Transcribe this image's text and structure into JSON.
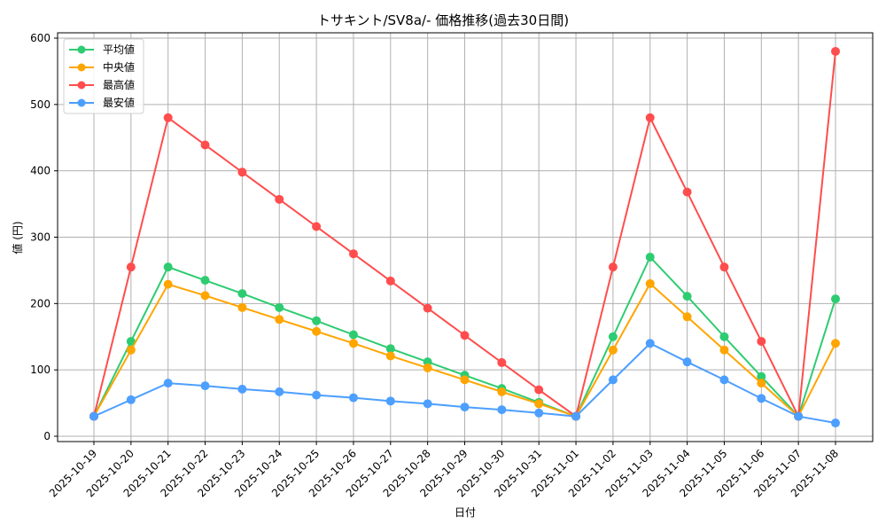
{
  "chart_data": {
    "type": "line",
    "title": "トサキント/SV8a/- 価格推移(過去30日間)",
    "xlabel": "日付",
    "ylabel": "値 (円)",
    "ylim": [
      0,
      600
    ],
    "yticks": [
      0,
      100,
      200,
      300,
      400,
      500,
      600
    ],
    "grid": true,
    "legend_position": "upper left",
    "categories": [
      "2025-10-19",
      "2025-10-20",
      "2025-10-21",
      "2025-10-22",
      "2025-10-23",
      "2025-10-24",
      "2025-10-25",
      "2025-10-26",
      "2025-10-27",
      "2025-10-28",
      "2025-10-29",
      "2025-10-30",
      "2025-10-31",
      "2025-11-01",
      "2025-11-02",
      "2025-11-03",
      "2025-11-04",
      "2025-11-05",
      "2025-11-06",
      "2025-11-07",
      "2025-11-08"
    ],
    "series": [
      {
        "name": "平均値",
        "color": "#2ecc71",
        "values": [
          30,
          143,
          255,
          235,
          215,
          194,
          174,
          153,
          132,
          112,
          92,
          72,
          51,
          30,
          150,
          270,
          211,
          150,
          90,
          30,
          207
        ]
      },
      {
        "name": "中央値",
        "color": "#ffa500",
        "values": [
          30,
          130,
          229,
          212,
          194,
          176,
          158,
          140,
          121,
          103,
          85,
          67,
          49,
          30,
          130,
          230,
          180,
          130,
          80,
          30,
          140
        ]
      },
      {
        "name": "最高値",
        "color": "#ff4d4d",
        "values": [
          30,
          255,
          480,
          439,
          398,
          357,
          316,
          275,
          234,
          193,
          152,
          111,
          70,
          30,
          255,
          480,
          368,
          255,
          143,
          30,
          580
        ]
      },
      {
        "name": "最安値",
        "color": "#4d9fff",
        "values": [
          30,
          55,
          80,
          76,
          71,
          67,
          62,
          58,
          53,
          49,
          44,
          40,
          35,
          30,
          85,
          140,
          112,
          85,
          57,
          30,
          20
        ]
      }
    ]
  }
}
